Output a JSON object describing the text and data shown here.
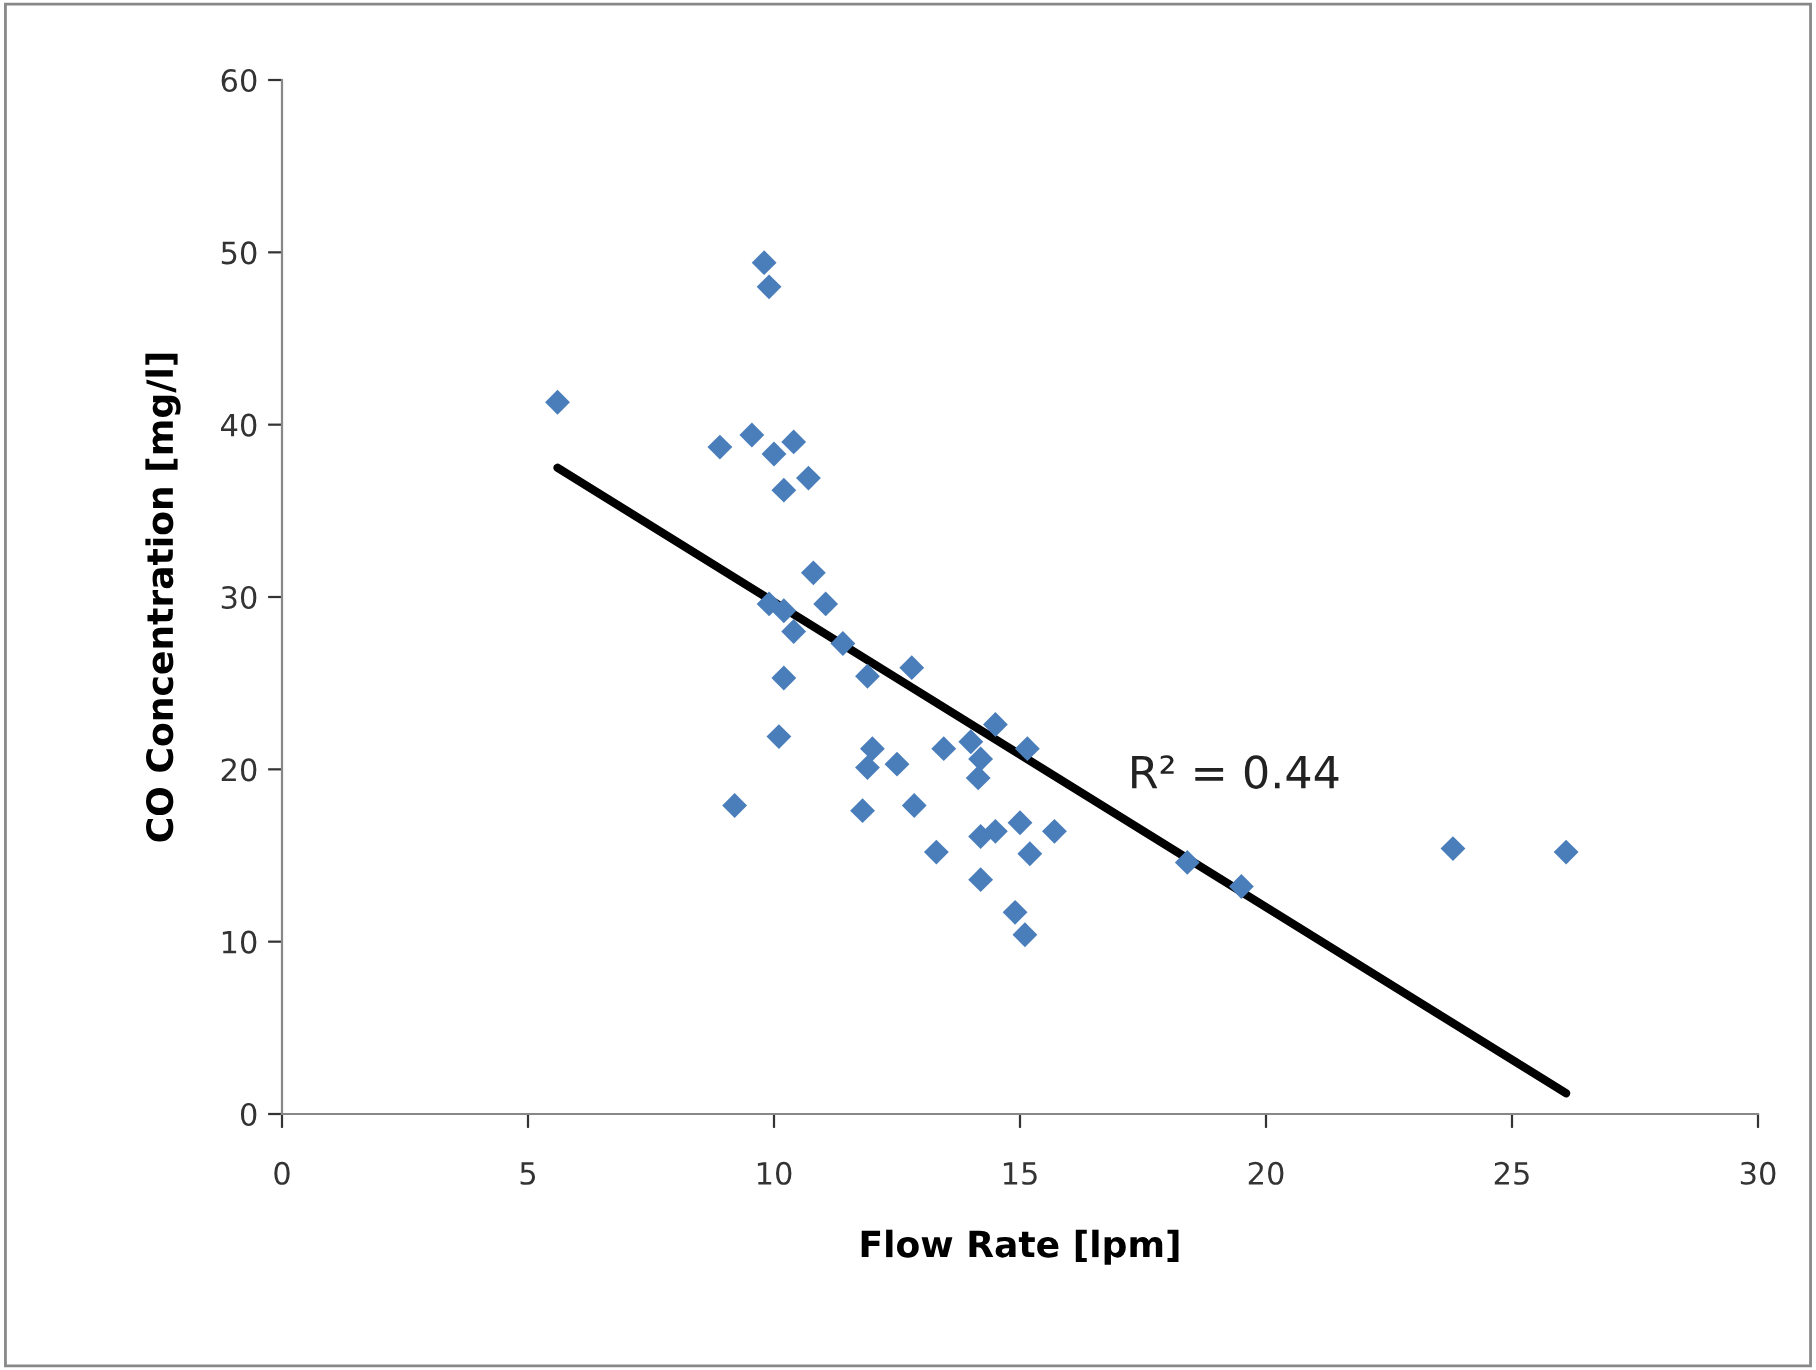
{
  "chart_data": {
    "type": "scatter",
    "xlabel": "Flow Rate [lpm]",
    "ylabel": "CO Concentration [mg/l]",
    "xlim": [
      0,
      30
    ],
    "ylim": [
      0,
      60
    ],
    "xticks": [
      0,
      5,
      10,
      15,
      20,
      25,
      30
    ],
    "yticks": [
      0,
      10,
      20,
      30,
      40,
      50,
      60
    ],
    "grid": false,
    "legend": false,
    "marker": "diamond",
    "series": [
      {
        "color": "#4a7ebb",
        "x": [
          5.6,
          8.9,
          9.55,
          9.8,
          9.9,
          10.0,
          10.4,
          10.2,
          10.7,
          10.8,
          11.05,
          9.9,
          10.2,
          10.4,
          11.4,
          11.9,
          12.8,
          10.2,
          10.1,
          9.2,
          12.0,
          11.9,
          12.5,
          11.8,
          12.85,
          13.45,
          14.0,
          14.5,
          14.2,
          14.15,
          15.15,
          13.3,
          14.2,
          14.5,
          15.0,
          15.7,
          15.2,
          14.2,
          14.9,
          15.1,
          18.4,
          19.5,
          23.8,
          26.1
        ],
        "values": [
          41.3,
          38.7,
          39.4,
          49.4,
          48.0,
          38.3,
          39.0,
          36.2,
          36.9,
          31.4,
          29.6,
          29.6,
          29.2,
          28.0,
          27.3,
          25.4,
          25.9,
          25.3,
          21.9,
          17.9,
          21.2,
          20.1,
          20.3,
          17.6,
          17.9,
          21.2,
          21.6,
          22.6,
          20.6,
          19.5,
          21.2,
          15.2,
          16.1,
          16.4,
          16.9,
          16.4,
          15.1,
          13.6,
          11.7,
          10.4,
          14.6,
          13.2,
          15.4,
          15.2
        ]
      },
      {
        "type": "line",
        "color": "#000000",
        "x": [
          5.6,
          26.1
        ],
        "values": [
          37.5,
          1.2
        ],
        "marker": "none"
      }
    ],
    "annotations": [
      "R² = 0.44"
    ]
  }
}
